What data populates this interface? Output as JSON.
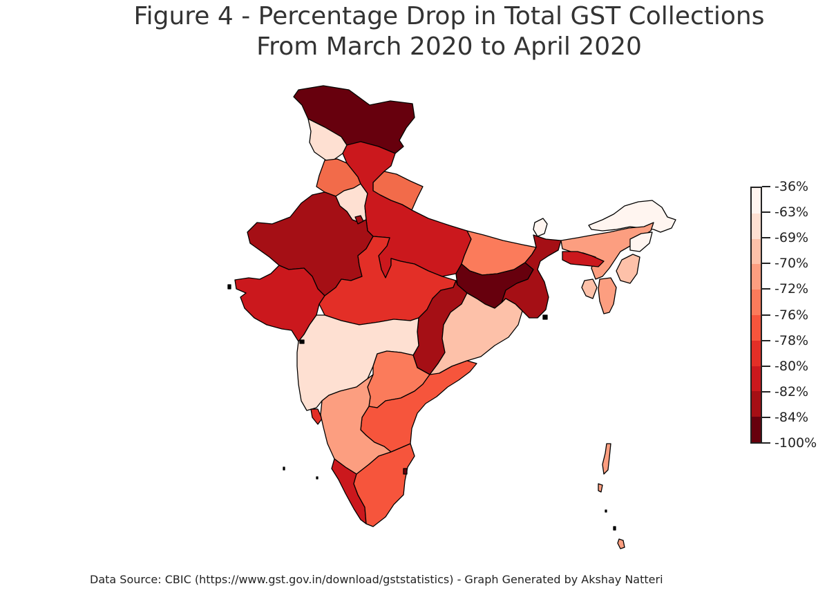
{
  "title_line1": "Figure 4 - Percentage Drop in Total GST Collections",
  "title_line2": "From March 2020 to April 2020",
  "source_note": "Data Source: CBIC (https://www.gst.gov.in/download/gststatistics) - Graph Generated by Akshay Natteri",
  "colorbar": {
    "colors": [
      "#67000d",
      "#a50f15",
      "#cb181d",
      "#e32f27",
      "#f6553c",
      "#fb7b5b",
      "#fc9e80",
      "#fdc1a9",
      "#fee0d2",
      "#fff5f0"
    ],
    "ticks": [
      "-36%",
      "-63%",
      "-69%",
      "-70%",
      "-72%",
      "-76%",
      "-78%",
      "-80%",
      "-82%",
      "-84%",
      "-100%"
    ]
  },
  "regions": [
    {
      "name": "Jammu & Kashmir",
      "color": "#67000d"
    },
    {
      "name": "Himachal Pradesh",
      "color": "#fee0d2"
    },
    {
      "name": "Punjab",
      "color": "#f26b4a"
    },
    {
      "name": "Haryana",
      "color": "#fee0d2"
    },
    {
      "name": "Uttarakhand",
      "color": "#f26b4a"
    },
    {
      "name": "Rajasthan",
      "color": "#a50f15"
    },
    {
      "name": "Uttar Pradesh",
      "color": "#cb181d"
    },
    {
      "name": "Bihar",
      "color": "#fb7b5b"
    },
    {
      "name": "Gujarat",
      "color": "#cb181d"
    },
    {
      "name": "Madhya Pradesh",
      "color": "#e32f27"
    },
    {
      "name": "Jharkhand",
      "color": "#67000d"
    },
    {
      "name": "West Bengal",
      "color": "#a50f15"
    },
    {
      "name": "Chhattisgarh",
      "color": "#a50f15"
    },
    {
      "name": "Odisha",
      "color": "#fdc1a9"
    },
    {
      "name": "Maharashtra",
      "color": "#fee0d2"
    },
    {
      "name": "Telangana",
      "color": "#fb7b5b"
    },
    {
      "name": "Andhra Pradesh",
      "color": "#f6553c"
    },
    {
      "name": "Karnataka",
      "color": "#fc9e80"
    },
    {
      "name": "Goa",
      "color": "#e32f27"
    },
    {
      "name": "Kerala",
      "color": "#cb181d"
    },
    {
      "name": "Tamil Nadu",
      "color": "#f6553c"
    },
    {
      "name": "Sikkim",
      "color": "#fff5f0"
    },
    {
      "name": "Arunachal Pradesh",
      "color": "#fff5f0"
    },
    {
      "name": "Assam",
      "color": "#fc9e80"
    },
    {
      "name": "Meghalaya",
      "color": "#cb181d"
    },
    {
      "name": "Nagaland",
      "color": "#fff5f0"
    },
    {
      "name": "Manipur",
      "color": "#fdc1a9"
    },
    {
      "name": "Mizoram",
      "color": "#fc9e80"
    },
    {
      "name": "Tripura",
      "color": "#fdc1a9"
    },
    {
      "name": "Delhi",
      "color": "#a50f15"
    },
    {
      "name": "Andaman & Nicobar",
      "color": "#fc9e80"
    },
    {
      "name": "Puducherry",
      "color": "#67000d"
    }
  ]
}
